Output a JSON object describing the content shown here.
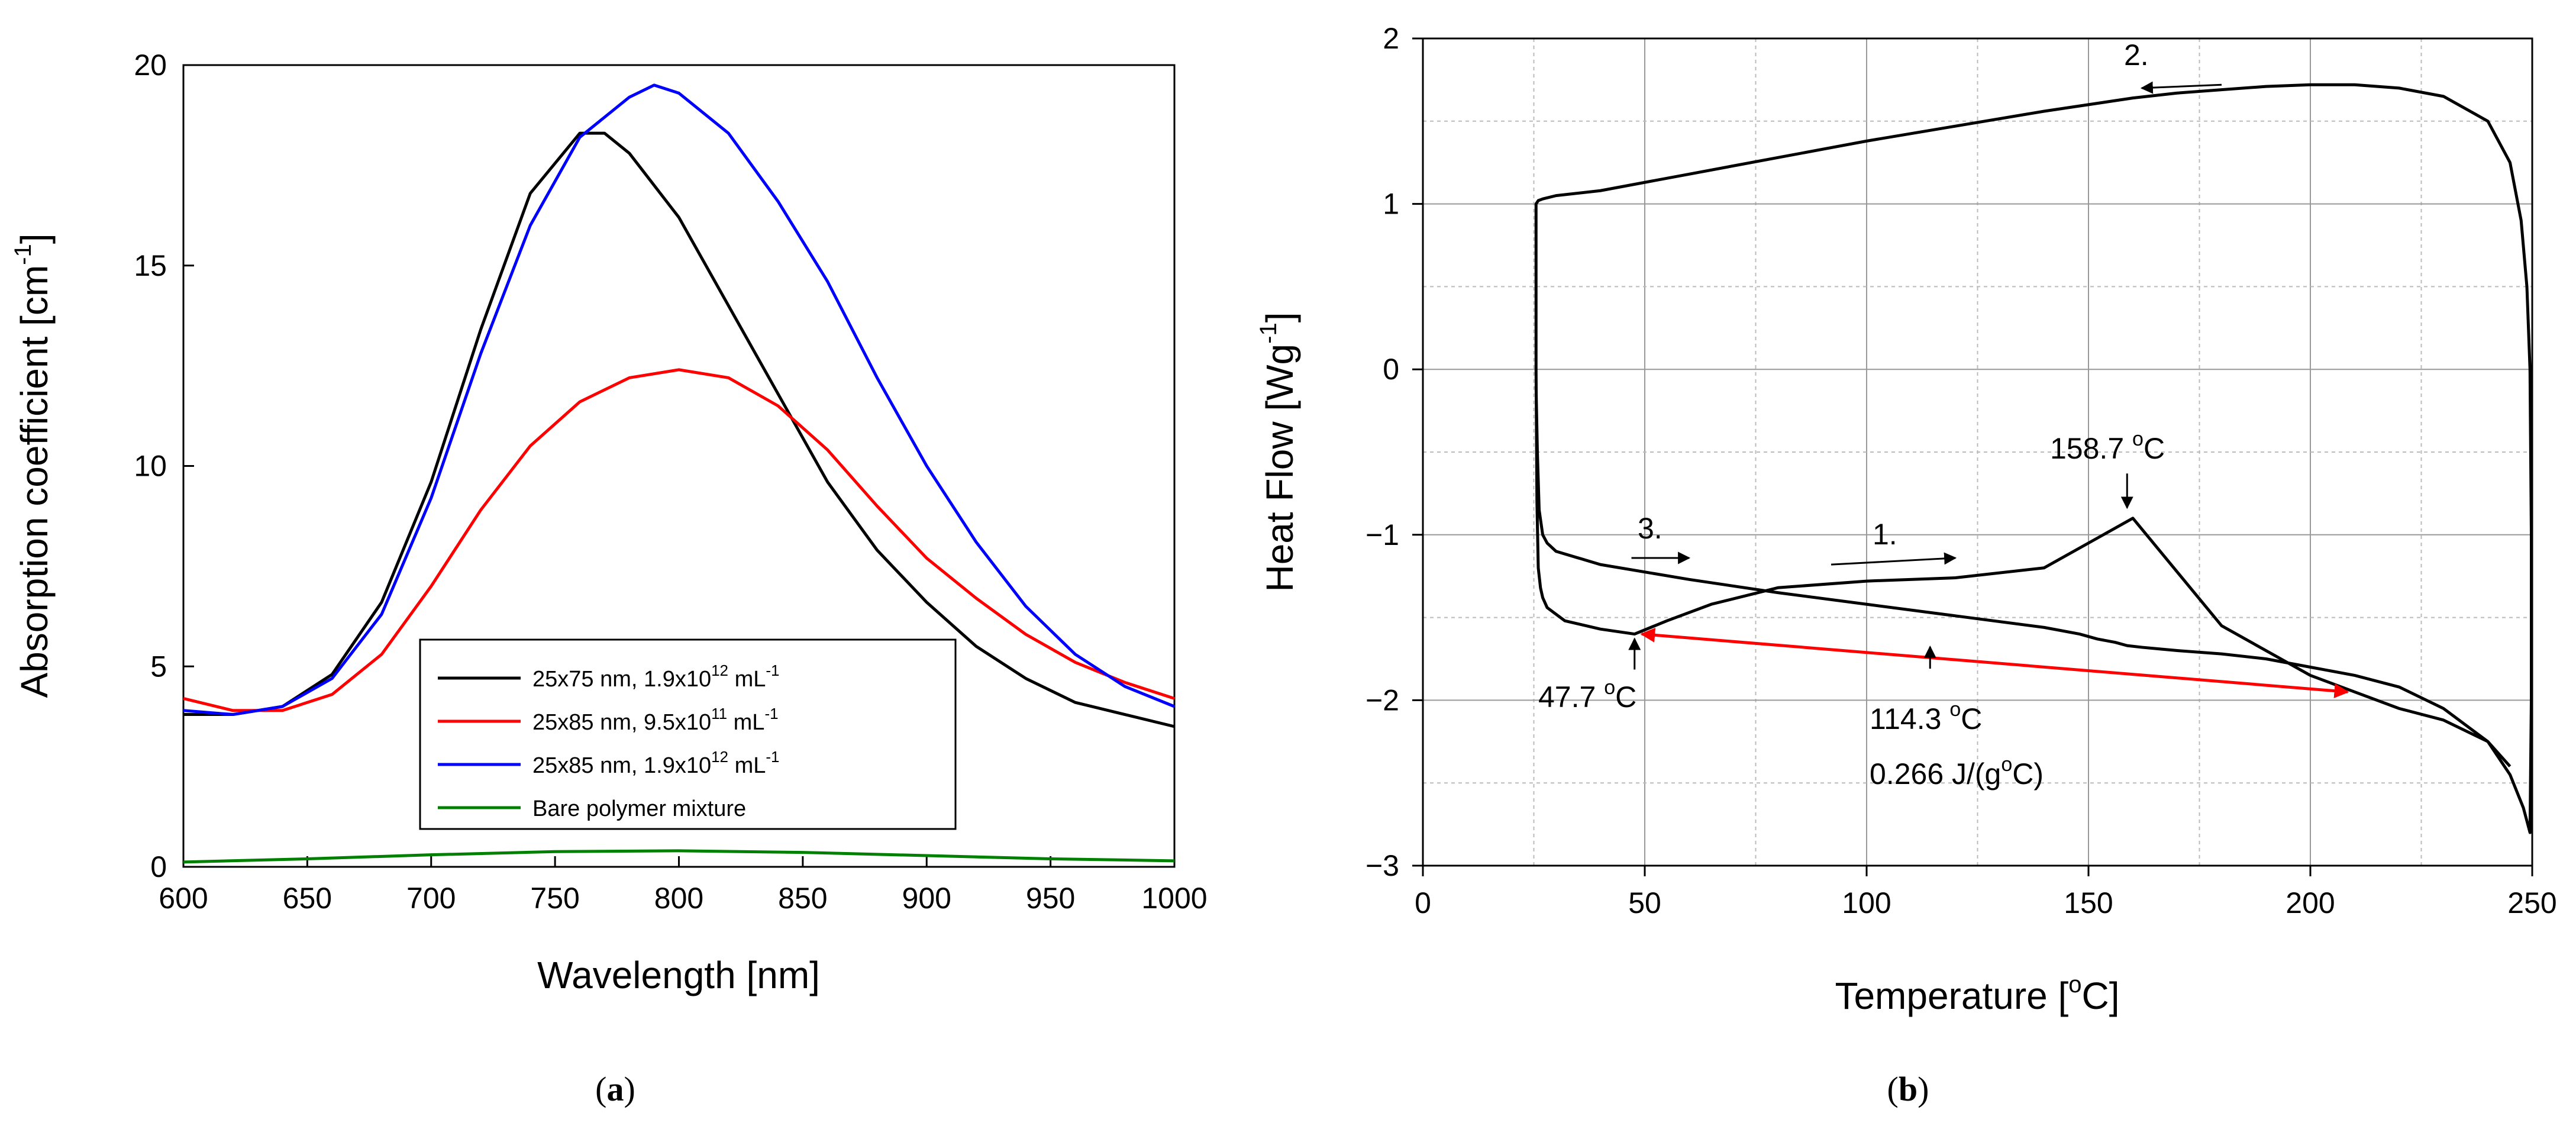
{
  "chart_data": [
    {
      "type": "line",
      "panel": "a",
      "caption": "a",
      "xlabel": "Wavelength [nm]",
      "ylabel_main": "Absorption coefficient [cm",
      "ylabel_sup": "-1",
      "ylabel_end": "]",
      "xlim": [
        600,
        1000
      ],
      "ylim": [
        0,
        20
      ],
      "xticks": [
        "600",
        "650",
        "700",
        "750",
        "800",
        "850",
        "900",
        "950",
        "1000"
      ],
      "yticks": [
        "0",
        "5",
        "10",
        "15",
        "20"
      ],
      "grid": false,
      "legend_position": "bottom-right",
      "series": [
        {
          "name": "25x75 nm, 1.9x10^12 mL^-1",
          "label_main": "25x75 nm, 1.9x10",
          "label_exp": "12",
          "label_unit": " mL",
          "label_unit_sup": "-1",
          "color": "#000000",
          "x": [
            600,
            620,
            640,
            660,
            680,
            700,
            720,
            740,
            760,
            770,
            780,
            800,
            820,
            840,
            860,
            880,
            900,
            920,
            940,
            960,
            980,
            1000
          ],
          "y": [
            3.8,
            3.8,
            4.0,
            4.8,
            6.6,
            9.6,
            13.4,
            16.8,
            18.3,
            18.3,
            17.8,
            16.2,
            14.0,
            11.8,
            9.6,
            7.9,
            6.6,
            5.5,
            4.7,
            4.1,
            3.8,
            3.5
          ]
        },
        {
          "name": "25x85 nm, 9.5x10^11 mL^-1",
          "label_main": "25x85 nm, 9.5x10",
          "label_exp": "11",
          "label_unit": " mL",
          "label_unit_sup": "-1",
          "color": "#ff0000",
          "x": [
            600,
            620,
            640,
            660,
            680,
            700,
            720,
            740,
            760,
            780,
            800,
            820,
            840,
            860,
            880,
            900,
            920,
            940,
            960,
            980,
            1000
          ],
          "y": [
            4.2,
            3.9,
            3.9,
            4.3,
            5.3,
            7.0,
            8.9,
            10.5,
            11.6,
            12.2,
            12.4,
            12.2,
            11.5,
            10.4,
            9.0,
            7.7,
            6.7,
            5.8,
            5.1,
            4.6,
            4.2
          ]
        },
        {
          "name": "25x85 nm, 1.9x10^12 mL^-1",
          "label_main": "25x85 nm, 1.9x10",
          "label_exp": "12",
          "label_unit": " mL",
          "label_unit_sup": "-1",
          "color": "#0000ff",
          "x": [
            600,
            620,
            640,
            660,
            680,
            700,
            720,
            740,
            760,
            780,
            790,
            800,
            820,
            840,
            860,
            880,
            900,
            920,
            940,
            960,
            980,
            1000
          ],
          "y": [
            3.9,
            3.8,
            4.0,
            4.7,
            6.3,
            9.2,
            12.8,
            16.0,
            18.2,
            19.2,
            19.5,
            19.3,
            18.3,
            16.6,
            14.6,
            12.2,
            10.0,
            8.1,
            6.5,
            5.3,
            4.5,
            4.0
          ]
        },
        {
          "name": "Bare polymer mixture",
          "label_main": "Bare polymer mixture",
          "color": "#008000",
          "x": [
            600,
            650,
            700,
            750,
            800,
            850,
            900,
            950,
            1000
          ],
          "y": [
            0.12,
            0.2,
            0.3,
            0.38,
            0.4,
            0.36,
            0.28,
            0.2,
            0.15
          ]
        }
      ]
    },
    {
      "type": "line",
      "panel": "b",
      "caption": "b",
      "xlabel_main": "Temperature [",
      "xlabel_sup": "o",
      "xlabel_end": "C]",
      "ylabel_main": "Heat Flow [Wg",
      "ylabel_sup": "-1",
      "ylabel_end": "]",
      "xlim": [
        0,
        250
      ],
      "ylim": [
        -3,
        2
      ],
      "xticks": [
        "0",
        "50",
        "100",
        "150",
        "200",
        "250"
      ],
      "yticks": [
        "−3",
        "−2",
        "−1",
        "0",
        "1",
        "2"
      ],
      "grid": true,
      "series": [
        {
          "name": "DSC trace",
          "color": "#000000",
          "x": [
            25.5,
            25.8,
            26.2,
            27,
            28,
            30,
            40,
            60,
            80,
            100,
            120,
            140,
            148,
            152,
            156,
            158.7,
            162,
            166,
            170,
            180,
            190,
            200,
            210,
            220,
            230,
            240,
            245,
            248,
            249.5,
            249.8,
            249.8,
            249.5,
            248.8,
            247.5,
            245,
            240,
            230,
            220,
            210,
            200,
            190,
            180,
            170,
            160,
            140,
            120,
            100,
            80,
            60,
            40,
            30,
            27,
            26,
            25.5,
            25.5,
            25.7,
            26,
            26.5,
            27,
            28,
            32,
            40,
            47.7,
            55,
            65,
            80,
            100,
            120,
            140,
            160,
            180,
            200,
            210,
            220,
            230,
            240,
            245
          ],
          "y": [
            -0.1,
            -0.5,
            -0.85,
            -1.0,
            -1.05,
            -1.1,
            -1.18,
            -1.27,
            -1.35,
            -1.42,
            -1.49,
            -1.56,
            -1.6,
            -1.63,
            -1.65,
            -1.67,
            -1.68,
            -1.69,
            -1.7,
            -1.72,
            -1.75,
            -1.8,
            -1.85,
            -1.92,
            -2.05,
            -2.25,
            -2.45,
            -2.65,
            -2.8,
            -2.0,
            -1.0,
            0.0,
            0.5,
            0.9,
            1.25,
            1.5,
            1.65,
            1.7,
            1.72,
            1.72,
            1.71,
            1.69,
            1.67,
            1.64,
            1.56,
            1.47,
            1.38,
            1.28,
            1.18,
            1.08,
            1.05,
            1.03,
            1.02,
            1.0,
            0.0,
            -0.8,
            -1.2,
            -1.32,
            -1.38,
            -1.44,
            -1.52,
            -1.57,
            -1.6,
            -1.52,
            -1.42,
            -1.32,
            -1.28,
            -1.26,
            -1.2,
            -0.9,
            -1.55,
            -1.85,
            -1.95,
            -2.05,
            -2.12,
            -2.25,
            -2.4
          ]
        }
      ],
      "peak_arrow": {
        "x": 158.7,
        "y": -0.88
      },
      "dip_arrow": {
        "x": 47.7,
        "y": -1.6
      },
      "mid_arrow": {
        "x": 114.3,
        "y": -1.72
      },
      "delta_line": {
        "x1": 47.7,
        "y1": -1.6,
        "x2": 210,
        "y2": -1.95,
        "color": "#ff0000"
      },
      "step_arrows": [
        {
          "x1": 180,
          "y1": 1.72,
          "x2": 162,
          "y2": 1.7
        },
        {
          "x1": 47,
          "y1": -1.14,
          "x2": 60,
          "y2": -1.14
        },
        {
          "x1": 92,
          "y1": -1.18,
          "x2": 120,
          "y2": -1.14
        }
      ],
      "annotations": {
        "peak_temp": "158.7",
        "peak_unit": "C",
        "dip_temp": "47.7",
        "dip_unit": "C",
        "delta_temp": "114.3",
        "delta_unit": "C",
        "capacity_main": "0.266 J/(g",
        "capacity_end": "C)",
        "degree_sup": "o",
        "step1": "1.",
        "step2": "2.",
        "step3": "3."
      }
    }
  ],
  "captions": {
    "a_open": "(",
    "a_letter": "a",
    "a_close": ")",
    "b_open": "(",
    "b_letter": "b",
    "b_close": ")"
  }
}
